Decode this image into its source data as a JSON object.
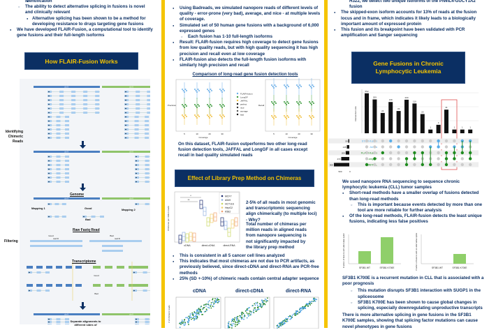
{
  "left": {
    "bullets": [
      {
        "level": 1,
        "text": "identification"
      },
      {
        "level": 2,
        "text": "The ability to detect alternative splicing in fusions is novel and clinically relevant"
      },
      {
        "level": 3,
        "text": "Alternative splicing has been shown to be a method for developing resistance to drugs targeting gene fusions"
      },
      {
        "level": 1,
        "text": "We have developed FLAIR-Fusion, a computational tool to identify gene fusions and their full-length isoforms"
      }
    ],
    "header": "How FLAIR-Fusion Works",
    "diagram": {
      "chr_left": "chr 9",
      "chr_right": "chr 6",
      "step1": "Identifying Chimeric Reads",
      "step2": "Filtering",
      "genome": "Genome",
      "mapping1": "Mapping 1",
      "mapping2": "Mapping 2",
      "good": "Good",
      "bad": "Bad",
      "raw": "Raw Fastq Read",
      "read_id": "read ID",
      "transcriptome": "Transcriptome",
      "separate": "Separate alignments to different sides of"
    }
  },
  "middle": {
    "bullets": [
      {
        "level": 1,
        "text": "Using Badreads, we simulated nanopore reads of different levels of quality - error-prone (very bad), average, and nice - at multiple levels of coverage."
      },
      {
        "level": 1,
        "text": "Simulated set of 50 human gene fusions with a background of 6,000 expressed genes"
      },
      {
        "level": 2,
        "text": "Each fusion has 1-10 full-length isoforms"
      },
      {
        "level": 1,
        "text": "Result: FLAIR-fusion requires high coverage to detect gene fusions from low quality reads, but with high quality sequencing it has high precision and recall even at low coverage"
      },
      {
        "level": 1,
        "text": "FLAIR-fusion also detects the full-length fusion isoforms with similarly high precision and recall"
      }
    ],
    "comparison_title": "Comparison of long-read gene fusion detection tools",
    "plot_left": {
      "ylabel": "Precision",
      "xlabel": "Coverage",
      "xticks": [
        "5",
        "10",
        "20",
        "30"
      ]
    },
    "plot_right": {
      "ylabel": "Recall",
      "xlabel": "Coverage",
      "xticks": [
        "5",
        "10",
        "20",
        "30"
      ]
    },
    "legend": [
      "FLAIR-fusion",
      "LongGF",
      "JAFFAL",
      "perfect",
      "nice",
      "average",
      "bad"
    ],
    "caption": "On this dataset, FLAIR-fusion outperforms two other long-read fusion detection tools, JAFFAL and LongGF in all cases except recall in bad quality simulated reads",
    "header2": "Effect of Library Prep Method on Chimeras",
    "box": {
      "ylabel": "Chimeras per million reads",
      "categories": [
        "cDNA",
        "direct-cDNA",
        "direct-RNA"
      ],
      "legend": [
        "MCF7",
        "A549",
        "HCT116",
        "HepG2",
        "K562"
      ],
      "sig": [
        "*",
        "**"
      ]
    },
    "box_text1": "2-5% of all reads in most genomic and transcriptomic sequencing align chimerically (to multiple loci) - Why?",
    "box_text2": "Total number of chimeras per million reads in aligned reads from nanopore sequencing is not significantly impacted by the library prep method",
    "bullets2": [
      "This is consistent in all 5 cancer cell lines analyzed",
      "This indicates that most chimeras are not due to PCR artifacts, as previously believed, since direct-cDNA and direct-RNA are PCR-free methods",
      "25% (SD +-10%) of chimeric reads contain central adapter sequence"
    ],
    "scatter_titles": [
      "cDNA",
      "direct-cDNA",
      "direct-RNA"
    ],
    "scatter_ylabel": "# of chimeric reads"
  },
  "right": {
    "bullets": [
      {
        "level": 0,
        "text": "H322, we detect two unique isoforms of the PIWIL4-GUCY1A2 fusion"
      },
      {
        "level": 1,
        "text": "The skipped-exon isoform accounts for 13% of reads at the fusion locus and in frame, which indicates it likely leads to a biologically important amount of expressed protein"
      },
      {
        "level": 1,
        "text": "This fusion and its breakpoint have been validated with PCR amplification and Sanger sequencing"
      }
    ],
    "header": "Gene Fusions in Chronic Lymphocytic Leukemia",
    "upset": {
      "ylabel": "Intersection size",
      "bars": [
        552,
        209,
        24,
        139,
        33,
        200,
        110,
        20,
        1,
        3,
        41,
        1,
        1,
        1
      ],
      "sets": [
        {
          "name": "STAR-fusion",
          "size": "59",
          "color": "#5aaee8"
        },
        {
          "name": "Arriba",
          "size": "145",
          "color": "#5aaee8"
        },
        {
          "name": "FLAIR-fusion",
          "size": "209",
          "color": "#1e8a1e"
        },
        {
          "name": "LongGF",
          "size": "472",
          "color": "#1e8a1e"
        },
        {
          "name": "JAFFAL",
          "size": "900",
          "color": "#1e8a1e"
        }
      ],
      "set_axis": [
        "500",
        "0"
      ]
    },
    "text1": "We used nanopore RNA sequencing to sequence chronic lymphocytic leukemia (CLL) tumor samples",
    "bullets2": [
      {
        "level": 1,
        "text": "Short-read methods have a smaller overlap of fusions detected than long-read methods"
      },
      {
        "level": 2,
        "text": "This is important because events detected by more than one tool are more reliable for further analysis"
      },
      {
        "level": 1,
        "text": "Of the long-read methods, FLAIR-fusion detects the least unique fusions, indicating less false positives"
      }
    ],
    "bar1": {
      "ylabel": "Fraction of fusions with alternative splicing",
      "categories": [
        "SF3B1 WT",
        "SF3B1 K700E"
      ],
      "values": [
        0.45,
        0.95
      ]
    },
    "bar2": {
      "ylabel": "Fraction of fusions with an alternative splice site",
      "categories": [
        "SF3B1 WT",
        "SF3B1 K700E"
      ],
      "values": [
        0.0,
        0.35
      ]
    },
    "text2": "SF3B1 K700E is a recurrent mutation in CLL that is associated with a poor prognosis",
    "bullets3": [
      "This mutation disrupts SF3B1 interaction with SUGP1 in the spliceosome",
      "SF3B1 K700E has been shown to cause global changes in splicing, especially downregulating unproductive transcripts"
    ],
    "text3": "There is more alternative splicing in gene fusions in the SF3B1 K700E samples, showing that splicing factor mutations can cause novel phenotypes in gene fusions"
  },
  "colors": {
    "navy": "#0b2f63",
    "gold": "#f5c400",
    "blue": "#4a7fc1",
    "green": "#8fc46a",
    "light_blue": "#a9cdef"
  }
}
